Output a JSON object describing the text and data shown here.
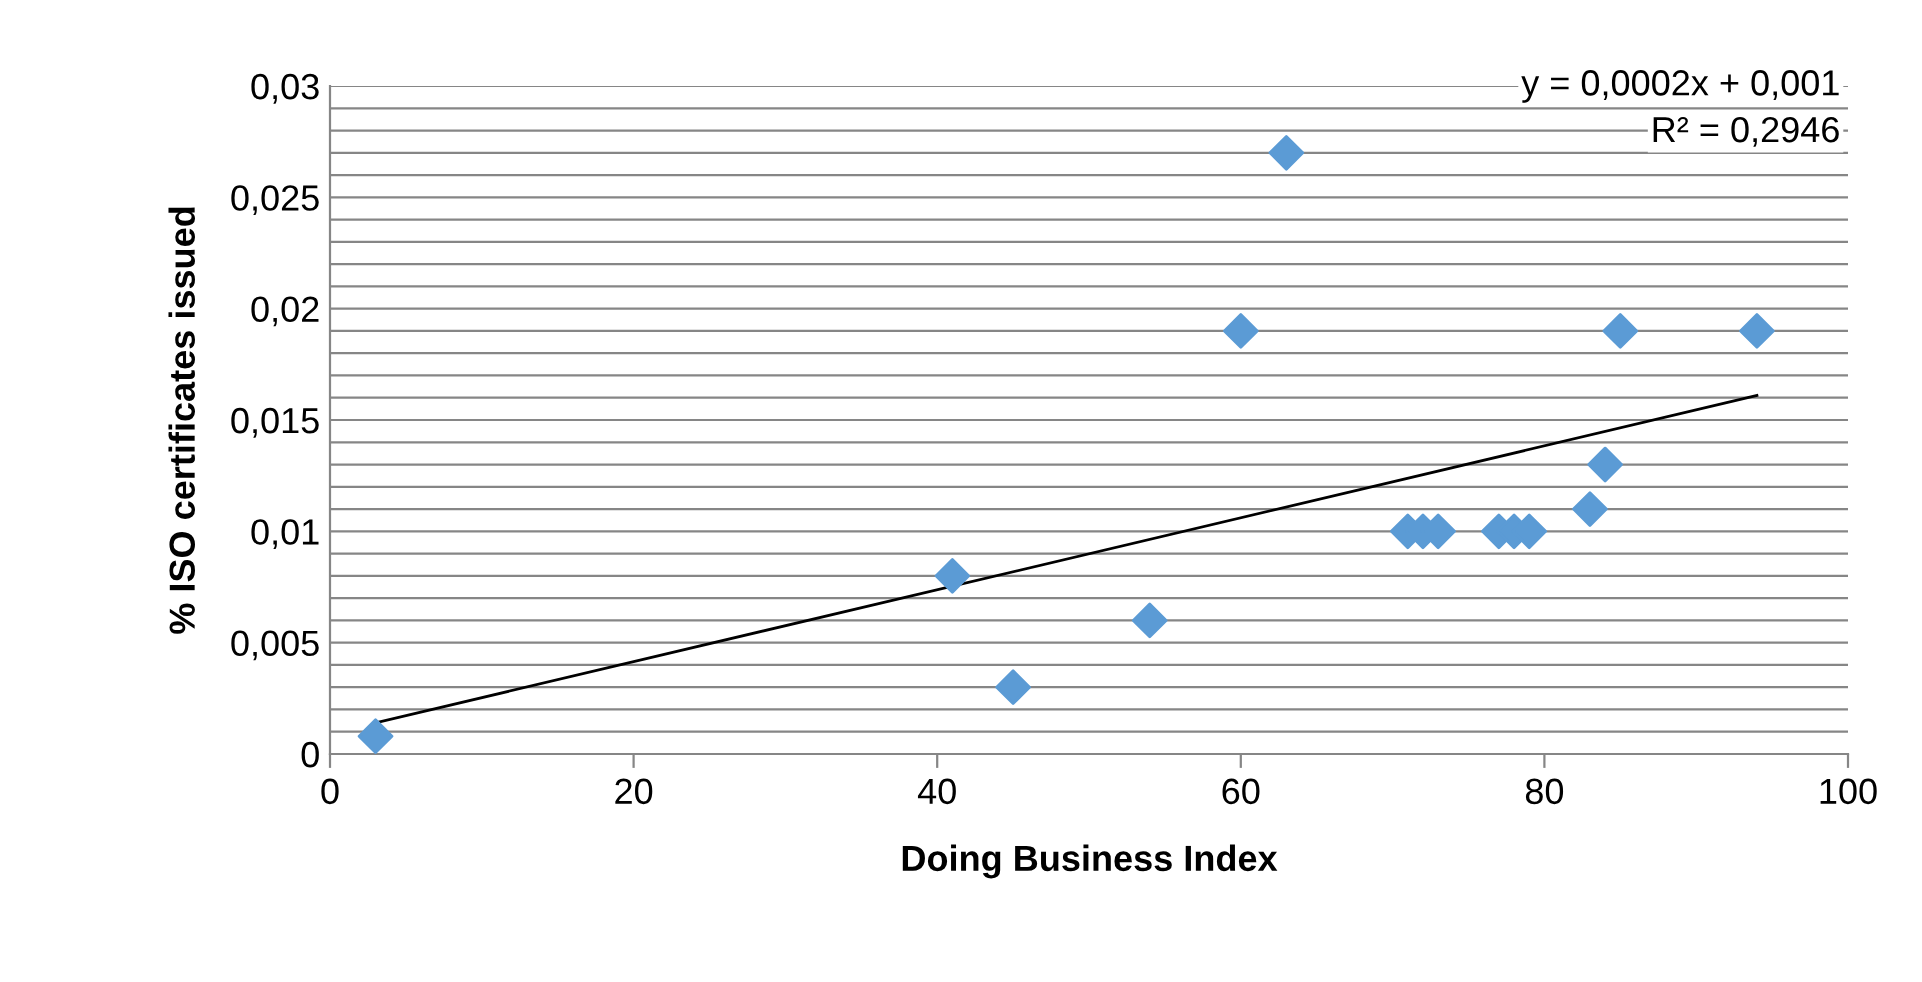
{
  "chart_data": {
    "type": "scatter",
    "xlabel": "Doing Business Index",
    "ylabel": "% ISO certificates issued",
    "series": [
      {
        "color": "#5b9bd5",
        "marker": "diamond",
        "x": [
          3,
          41,
          45,
          54,
          60,
          63,
          71,
          72,
          73,
          77,
          78,
          79,
          83,
          84,
          85,
          94
        ],
        "values": [
          0.0008,
          0.008,
          0.003,
          0.006,
          0.019,
          0.027,
          0.01,
          0.01,
          0.01,
          0.01,
          0.01,
          0.01,
          0.011,
          0.013,
          0.019,
          0.019
        ]
      },
      {
        "type": "line",
        "color": "#000000",
        "marker": "none",
        "x": [
          3,
          94
        ],
        "values": [
          0.0014,
          0.0161
        ]
      }
    ],
    "annotations": [
      "y = 0,0002x + 0,001",
      "R² = 0,2946"
    ],
    "xlim": [
      0,
      100
    ],
    "xticks": [
      0,
      20,
      40,
      60,
      80,
      100
    ],
    "ylim": [
      0,
      0.03
    ],
    "yticks": [
      {
        "value": 0,
        "label": "0"
      },
      {
        "value": 0.001,
        "label": null
      },
      {
        "value": 0.002,
        "label": null
      },
      {
        "value": 0.003,
        "label": null
      },
      {
        "value": 0.004,
        "label": null
      },
      {
        "value": 0.005,
        "label": "0,005"
      },
      {
        "value": 0.006,
        "label": null
      },
      {
        "value": 0.007,
        "label": null
      },
      {
        "value": 0.008,
        "label": null
      },
      {
        "value": 0.009,
        "label": null
      },
      {
        "value": 0.01,
        "label": "0,01"
      },
      {
        "value": 0.011,
        "label": null
      },
      {
        "value": 0.012,
        "label": null
      },
      {
        "value": 0.013,
        "label": null
      },
      {
        "value": 0.014,
        "label": null
      },
      {
        "value": 0.015,
        "label": "0,015"
      },
      {
        "value": 0.016,
        "label": null
      },
      {
        "value": 0.017,
        "label": null
      },
      {
        "value": 0.018,
        "label": null
      },
      {
        "value": 0.019,
        "label": null
      },
      {
        "value": 0.02,
        "label": "0,02"
      },
      {
        "value": 0.021,
        "label": null
      },
      {
        "value": 0.022,
        "label": null
      },
      {
        "value": 0.023,
        "label": null
      },
      {
        "value": 0.024,
        "label": null
      },
      {
        "value": 0.025,
        "label": "0,025"
      },
      {
        "value": 0.026,
        "label": null
      },
      {
        "value": 0.027,
        "label": null
      },
      {
        "value": 0.028,
        "label": null
      },
      {
        "value": 0.029,
        "label": null
      },
      {
        "value": 0.03,
        "label": "0,03"
      }
    ],
    "grid": "y",
    "legend": false
  }
}
